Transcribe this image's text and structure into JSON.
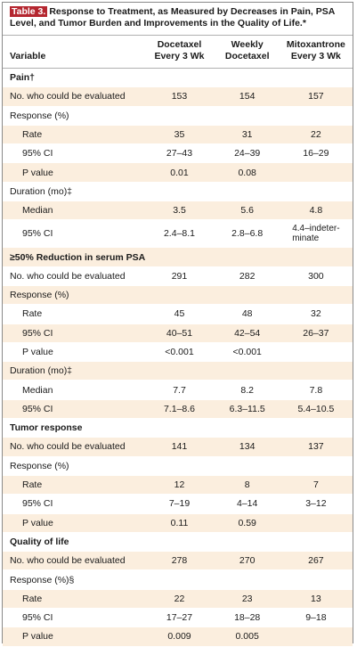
{
  "table_label": "Table 3.",
  "caption": "Response to Treatment, as Measured by Decreases in Pain, PSA Level, and Tumor Burden and Improvements in the Quality of Life.*",
  "header": {
    "variable": "Variable",
    "col1_line1": "Docetaxel",
    "col1_line2": "Every 3 Wk",
    "col2_line1": "Weekly",
    "col2_line2": "Docetaxel",
    "col3_line1": "Mitoxantrone",
    "col3_line2": "Every 3 Wk"
  },
  "rows": [
    {
      "label": "Pain†",
      "kind": "section",
      "shade": false
    },
    {
      "label": "No. who could be evaluated",
      "kind": "item",
      "shade": true,
      "v1": "153",
      "v2": "154",
      "v3": "157"
    },
    {
      "label": "Response (%)",
      "kind": "item",
      "shade": false
    },
    {
      "label": "Rate",
      "kind": "sub",
      "shade": true,
      "v1": "35",
      "v2": "31",
      "v3": "22"
    },
    {
      "label": "95% CI",
      "kind": "sub",
      "shade": false,
      "v1": "27–43",
      "v2": "24–39",
      "v3": "16–29"
    },
    {
      "label": "P value",
      "kind": "sub",
      "shade": true,
      "v1": "0.01",
      "v2": "0.08",
      "v3": ""
    },
    {
      "label": "Duration (mo)‡",
      "kind": "item",
      "shade": false
    },
    {
      "label": "Median",
      "kind": "sub",
      "shade": true,
      "v1": "3.5",
      "v2": "5.6",
      "v3": "4.8"
    },
    {
      "label": "95% CI",
      "kind": "sub",
      "shade": false,
      "tall": true,
      "v1": "2.4–8.1",
      "v2": "2.8–6.8",
      "v3_line1": "4.4–indeter-",
      "v3_line2": "minate"
    },
    {
      "label": "≥50% Reduction in serum PSA",
      "kind": "section",
      "shade": true
    },
    {
      "label": "No. who could be evaluated",
      "kind": "item",
      "shade": false,
      "v1": "291",
      "v2": "282",
      "v3": "300"
    },
    {
      "label": "Response (%)",
      "kind": "item",
      "shade": true
    },
    {
      "label": "Rate",
      "kind": "sub",
      "shade": false,
      "v1": "45",
      "v2": "48",
      "v3": "32"
    },
    {
      "label": "95% CI",
      "kind": "sub",
      "shade": true,
      "v1": "40–51",
      "v2": "42–54",
      "v3": "26–37"
    },
    {
      "label": "P value",
      "kind": "sub",
      "shade": false,
      "v1": "<0.001",
      "v2": "<0.001",
      "v3": ""
    },
    {
      "label": "Duration (mo)‡",
      "kind": "item",
      "shade": true
    },
    {
      "label": "Median",
      "kind": "sub",
      "shade": false,
      "v1": "7.7",
      "v2": "8.2",
      "v3": "7.8"
    },
    {
      "label": "95% CI",
      "kind": "sub",
      "shade": true,
      "v1": "7.1–8.6",
      "v2": "6.3–11.5",
      "v3": "5.4–10.5"
    },
    {
      "label": "Tumor response",
      "kind": "section",
      "shade": false
    },
    {
      "label": "No. who could be evaluated",
      "kind": "item",
      "shade": true,
      "v1": "141",
      "v2": "134",
      "v3": "137"
    },
    {
      "label": "Response (%)",
      "kind": "item",
      "shade": false
    },
    {
      "label": "Rate",
      "kind": "sub",
      "shade": true,
      "v1": "12",
      "v2": "8",
      "v3": "7"
    },
    {
      "label": "95% CI",
      "kind": "sub",
      "shade": false,
      "v1": "7–19",
      "v2": "4–14",
      "v3": "3–12"
    },
    {
      "label": "P value",
      "kind": "sub",
      "shade": true,
      "v1": "0.11",
      "v2": "0.59",
      "v3": ""
    },
    {
      "label": "Quality of life",
      "kind": "section",
      "shade": false
    },
    {
      "label": "No. who could be evaluated",
      "kind": "item",
      "shade": true,
      "v1": "278",
      "v2": "270",
      "v3": "267"
    },
    {
      "label": "Response (%)§",
      "kind": "item",
      "shade": false
    },
    {
      "label": "Rate",
      "kind": "sub",
      "shade": true,
      "v1": "22",
      "v2": "23",
      "v3": "13"
    },
    {
      "label": "95% CI",
      "kind": "sub",
      "shade": false,
      "v1": "17–27",
      "v2": "18–28",
      "v3": "9–18"
    },
    {
      "label": "P value",
      "kind": "sub",
      "shade": true,
      "v1": "0.009",
      "v2": "0.005",
      "v3": ""
    }
  ]
}
